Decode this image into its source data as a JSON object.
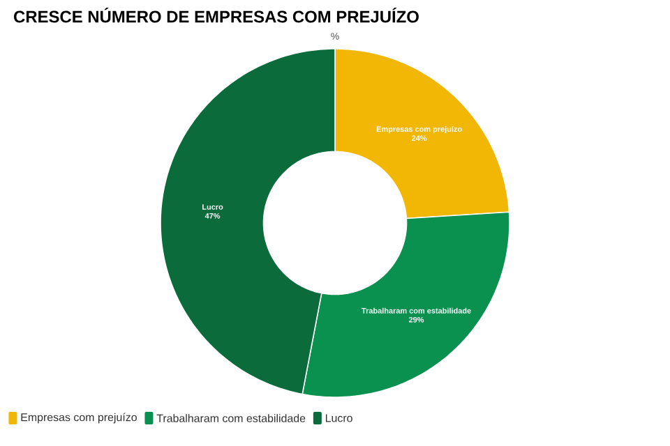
{
  "chart_data": {
    "type": "donut",
    "title": "CRESCE NÚMERO DE EMPRESAS COM PREJUÍZO",
    "subtitle": "%",
    "categories": [
      "Empresas com prejuízo",
      "Trabalharam com estabilidade",
      "Lucro"
    ],
    "values": [
      24,
      29,
      47
    ],
    "colors": [
      "#f2b705",
      "#0a9150",
      "#0b6b3a"
    ],
    "value_labels": [
      "24%",
      "29%",
      "47%"
    ],
    "legend": "bottom left"
  }
}
